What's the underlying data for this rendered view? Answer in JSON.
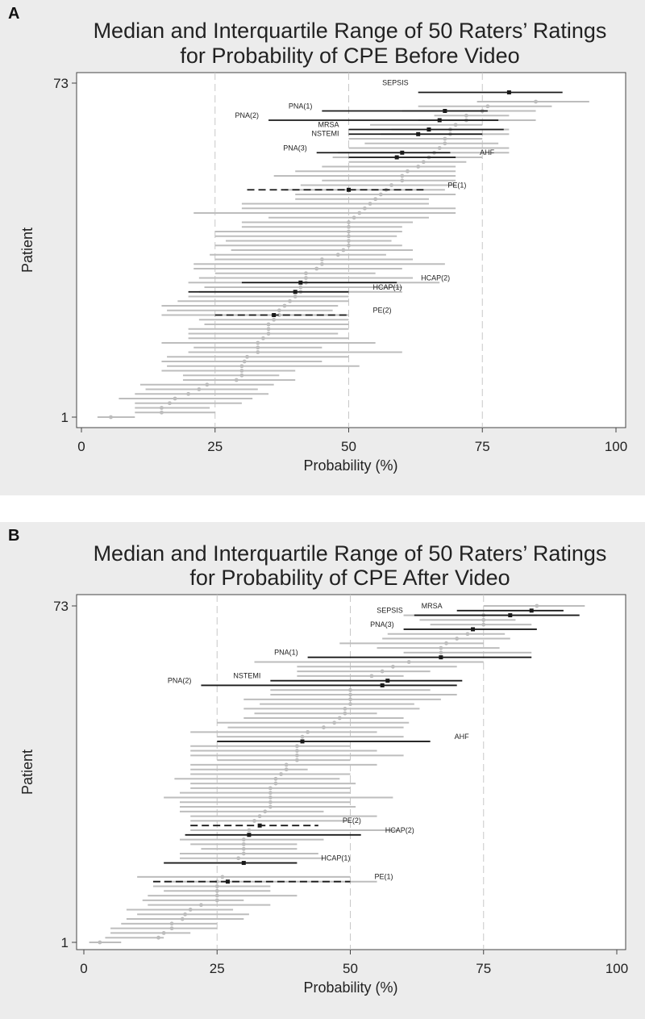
{
  "chart_data": [
    {
      "panel_label": "A",
      "type": "interval-dot",
      "title": [
        "Median and Interquartile Range of 50 Raters’ Ratings",
        "for Probability of CPE Before Video"
      ],
      "xlabel": "Probability (%)",
      "ylabel": "Patient",
      "xlim": [
        0,
        100
      ],
      "xticks": [
        "0",
        "25",
        "50",
        "75",
        "100"
      ],
      "xtick_values": [
        0,
        25,
        50,
        75,
        100
      ],
      "yticks": [
        "1",
        "73"
      ],
      "ylim": [
        1,
        73
      ],
      "reference_lines_x": [
        25,
        50,
        75
      ],
      "colors": {
        "gray": "#bdbdbd",
        "highlight": "#1a1a1a"
      },
      "gray_intervals": [
        [
          1,
          3,
          10,
          5.5
        ],
        [
          2,
          10,
          25,
          15
        ],
        [
          3,
          10,
          24,
          15
        ],
        [
          4,
          10,
          30,
          16.5
        ],
        [
          5,
          7,
          32,
          17.5
        ],
        [
          6,
          10,
          35,
          20
        ],
        [
          7,
          12,
          33,
          22
        ],
        [
          8,
          11,
          36,
          23.5
        ],
        [
          9,
          19,
          40,
          29
        ],
        [
          10,
          19,
          37,
          30
        ],
        [
          11,
          15,
          40,
          30
        ],
        [
          12,
          16,
          52,
          30
        ],
        [
          13,
          15,
          45,
          30.5
        ],
        [
          14,
          16,
          50,
          31
        ],
        [
          15,
          20,
          60,
          33
        ],
        [
          16,
          21,
          45,
          33
        ],
        [
          17,
          15,
          55,
          33
        ],
        [
          18,
          20,
          50,
          34
        ],
        [
          19,
          20,
          48,
          35
        ],
        [
          20,
          20,
          50,
          35
        ],
        [
          21,
          23,
          50,
          35
        ],
        [
          22,
          22,
          50,
          36
        ],
        [
          23,
          15,
          50,
          37
        ],
        [
          24,
          16,
          47,
          37
        ],
        [
          25,
          15,
          48,
          38
        ],
        [
          26,
          18,
          50,
          39
        ],
        [
          27,
          20,
          50,
          40
        ],
        [
          28,
          22,
          60,
          41
        ],
        [
          29,
          23,
          60,
          41
        ],
        [
          30,
          20,
          67,
          42
        ],
        [
          31,
          22,
          62,
          42
        ],
        [
          32,
          25,
          55,
          42
        ],
        [
          33,
          21,
          60,
          44
        ],
        [
          34,
          21,
          68,
          45
        ],
        [
          35,
          25,
          62,
          45
        ],
        [
          36,
          24,
          57,
          48
        ],
        [
          37,
          28,
          62,
          49
        ],
        [
          38,
          25,
          60,
          50
        ],
        [
          39,
          27,
          58,
          50
        ],
        [
          40,
          25,
          59,
          50
        ],
        [
          41,
          25,
          60,
          50
        ],
        [
          42,
          30,
          60,
          50
        ],
        [
          43,
          30,
          62,
          50
        ],
        [
          44,
          35,
          65,
          51
        ],
        [
          45,
          21,
          70,
          52
        ],
        [
          46,
          30,
          70,
          53
        ],
        [
          47,
          30,
          65,
          54
        ],
        [
          48,
          40,
          65,
          55
        ],
        [
          49,
          40,
          70,
          56
        ],
        [
          50,
          38,
          68,
          57
        ],
        [
          51,
          41,
          70,
          58
        ],
        [
          52,
          45,
          70,
          60
        ],
        [
          53,
          36,
          70,
          60
        ],
        [
          54,
          40,
          70,
          61
        ],
        [
          55,
          45,
          70,
          63
        ],
        [
          56,
          50,
          72,
          64
        ],
        [
          57,
          47,
          75,
          65
        ],
        [
          58,
          48,
          80,
          66
        ],
        [
          59,
          50,
          80,
          67
        ],
        [
          60,
          53,
          78,
          68
        ],
        [
          61,
          50,
          75,
          68
        ],
        [
          62,
          56,
          80,
          69
        ],
        [
          63,
          58,
          80,
          69
        ],
        [
          64,
          54,
          75,
          70
        ],
        [
          65,
          63,
          85,
          72
        ],
        [
          66,
          66,
          80,
          72
        ],
        [
          67,
          60,
          85,
          75
        ],
        [
          68,
          63,
          88,
          76
        ],
        [
          69,
          74,
          95,
          85
        ]
      ],
      "highlighted": [
        {
          "label": "SEPSIS",
          "patient": 71,
          "q1": 63,
          "median": 80,
          "q3": 90,
          "dashed": false
        },
        {
          "label": "PNA(1)",
          "patient": 67,
          "q1": 45,
          "median": 68,
          "q3": 76,
          "dashed": false
        },
        {
          "label": "PNA(2)",
          "patient": 65,
          "q1": 35,
          "median": 67,
          "q3": 78,
          "dashed": false
        },
        {
          "label": "MRSA",
          "patient": 63,
          "q1": 50,
          "median": 65,
          "q3": 79,
          "dashed": false
        },
        {
          "label": "NSTEMI",
          "patient": 62,
          "q1": 50,
          "median": 63,
          "q3": 75,
          "dashed": false
        },
        {
          "label": "PNA(3)",
          "patient": 58,
          "q1": 44,
          "median": 60,
          "q3": 69,
          "dashed": false
        },
        {
          "label": "AHF",
          "patient": 57,
          "q1": 50,
          "median": 59,
          "q3": 70,
          "dashed": false
        },
        {
          "label": "PE(1)",
          "patient": 50,
          "q1": 31,
          "median": 50,
          "q3": 64,
          "dashed": true
        },
        {
          "label": "HCAP(2)",
          "patient": 30,
          "q1": 30,
          "median": 41,
          "q3": 59,
          "dashed": false
        },
        {
          "label": "HCAP(1)",
          "patient": 28,
          "q1": 20,
          "median": 40,
          "q3": 50,
          "dashed": false
        },
        {
          "label": "PE(2)",
          "patient": 23,
          "q1": 25,
          "median": 36,
          "q3": 50,
          "dashed": true
        }
      ]
    },
    {
      "panel_label": "B",
      "type": "interval-dot",
      "title": [
        "Median and Interquartile Range of 50 Raters’ Ratings",
        "for Probability of CPE After Video"
      ],
      "xlabel": "Probability (%)",
      "ylabel": "Patient",
      "xlim": [
        0,
        100
      ],
      "xticks": [
        "0",
        "25",
        "50",
        "75",
        "100"
      ],
      "xtick_values": [
        0,
        25,
        50,
        75,
        100
      ],
      "yticks": [
        "1",
        "73"
      ],
      "ylim": [
        1,
        73
      ],
      "reference_lines_x": [
        25,
        50,
        75
      ],
      "colors": {
        "gray": "#bdbdbd",
        "highlight": "#1a1a1a"
      },
      "gray_intervals": [
        [
          1,
          1,
          7,
          3
        ],
        [
          2,
          4,
          15,
          14
        ],
        [
          3,
          5,
          20,
          15
        ],
        [
          4,
          5,
          25,
          16.5
        ],
        [
          5,
          7,
          25,
          16.5
        ],
        [
          6,
          8,
          30,
          18.5
        ],
        [
          7,
          10,
          31,
          19
        ],
        [
          8,
          8,
          28,
          20
        ],
        [
          9,
          12,
          35,
          22
        ],
        [
          10,
          11,
          30,
          25
        ],
        [
          11,
          12,
          40,
          25
        ],
        [
          12,
          15,
          35,
          25
        ],
        [
          13,
          13,
          35,
          25
        ],
        [
          14,
          15,
          55,
          25
        ],
        [
          15,
          10,
          50,
          26
        ],
        [
          19,
          18,
          45,
          29
        ],
        [
          20,
          18,
          44,
          30
        ],
        [
          21,
          22,
          40,
          30
        ],
        [
          22,
          20,
          40,
          30
        ],
        [
          23,
          18,
          45,
          30
        ],
        [
          25,
          20,
          59,
          31
        ],
        [
          27,
          20,
          50,
          32
        ],
        [
          28,
          20,
          55,
          33
        ],
        [
          29,
          18,
          45,
          34
        ],
        [
          30,
          18,
          51,
          35
        ],
        [
          31,
          18,
          50,
          35
        ],
        [
          32,
          15,
          58,
          35
        ],
        [
          33,
          18,
          50,
          35
        ],
        [
          34,
          20,
          50,
          35
        ],
        [
          35,
          20,
          51,
          36
        ],
        [
          36,
          17,
          48,
          36
        ],
        [
          37,
          20,
          50,
          37
        ],
        [
          38,
          20,
          42,
          38
        ],
        [
          39,
          20,
          55,
          38
        ],
        [
          40,
          25,
          50,
          40
        ],
        [
          41,
          20,
          60,
          40
        ],
        [
          42,
          20,
          55,
          40
        ],
        [
          43,
          20,
          50,
          40
        ],
        [
          45,
          25,
          60,
          41
        ],
        [
          46,
          20,
          55,
          42
        ],
        [
          47,
          27,
          60,
          45
        ],
        [
          48,
          25,
          61,
          47
        ],
        [
          49,
          30,
          60,
          48
        ],
        [
          50,
          32,
          55,
          49
        ],
        [
          51,
          30,
          63,
          49
        ],
        [
          52,
          33,
          62,
          50
        ],
        [
          53,
          30,
          67,
          50
        ],
        [
          54,
          35,
          70,
          50
        ],
        [
          55,
          35,
          65,
          50
        ],
        [
          58,
          40,
          60,
          54
        ],
        [
          59,
          40,
          65,
          56
        ],
        [
          60,
          40,
          70,
          58
        ],
        [
          61,
          32,
          75,
          61
        ],
        [
          63,
          60,
          84,
          67
        ],
        [
          64,
          55,
          78,
          67
        ],
        [
          65,
          48,
          75,
          68
        ],
        [
          66,
          56,
          80,
          70
        ],
        [
          67,
          57,
          79,
          72
        ],
        [
          69,
          65,
          84,
          75
        ],
        [
          70,
          63,
          81,
          75
        ],
        [
          71,
          60,
          85,
          75
        ],
        [
          73,
          75,
          94,
          85
        ]
      ],
      "highlighted": [
        {
          "label": "MRSA",
          "patient": 72,
          "q1": 70,
          "median": 84,
          "q3": 90,
          "dashed": false
        },
        {
          "label": "SEPSIS",
          "patient": 71,
          "q1": 62,
          "median": 80,
          "q3": 93,
          "dashed": false
        },
        {
          "label": "PNA(3)",
          "patient": 68,
          "q1": 60,
          "median": 73,
          "q3": 85,
          "dashed": false
        },
        {
          "label": "PNA(1)",
          "patient": 62,
          "q1": 42,
          "median": 67,
          "q3": 84,
          "dashed": false
        },
        {
          "label": "NSTEMI",
          "patient": 57,
          "q1": 35,
          "median": 57,
          "q3": 71,
          "dashed": false
        },
        {
          "label": "PNA(2)",
          "patient": 56,
          "q1": 22,
          "median": 56,
          "q3": 70,
          "dashed": false
        },
        {
          "label": "AHF",
          "patient": 44,
          "q1": 25,
          "median": 41,
          "q3": 65,
          "dashed": false
        },
        {
          "label": "PE(2)",
          "patient": 26,
          "q1": 20,
          "median": 33,
          "q3": 44,
          "dashed": true
        },
        {
          "label": "HCAP(2)",
          "patient": 24,
          "q1": 19,
          "median": 31,
          "q3": 52,
          "dashed": false
        },
        {
          "label": "HCAP(1)",
          "patient": 18,
          "q1": 15,
          "median": 30,
          "q3": 40,
          "dashed": false
        },
        {
          "label": "PE(1)",
          "patient": 14,
          "q1": 13,
          "median": 27,
          "q3": 50,
          "dashed": true
        }
      ]
    }
  ]
}
